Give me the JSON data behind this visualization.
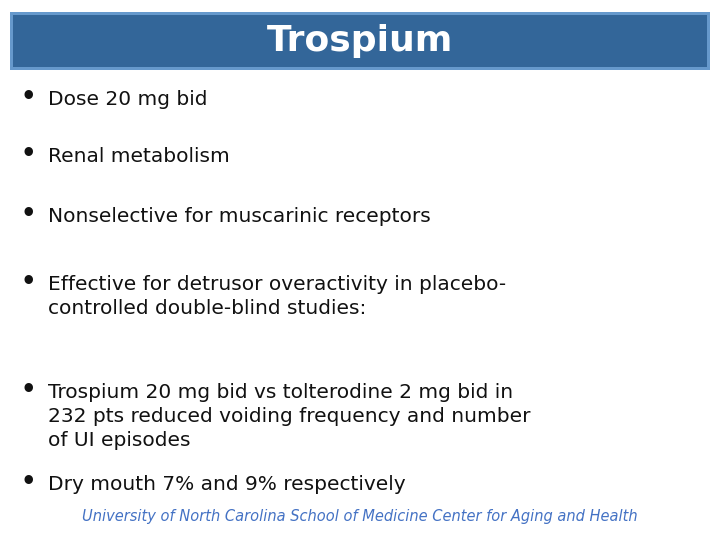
{
  "title": "Trospium",
  "title_bg_color": "#336699",
  "title_border_color": "#6699CC",
  "title_text_color": "#FFFFFF",
  "background_color": "#FFFFFF",
  "bullet_points": [
    "Dose 20 mg bid",
    "Renal metabolism",
    "Nonselective for muscarinic receptors",
    "Effective for detrusor overactivity in placebo-\ncontrolled double-blind studies:",
    "Trospium 20 mg bid vs tolterodine 2 mg bid in\n232 pts reduced voiding frequency and number\nof UI episodes",
    "Dry mouth 7% and 9% respectively"
  ],
  "bullet_color": "#111111",
  "bullet_text_color": "#111111",
  "bullet_fontsize": 14.5,
  "title_fontsize": 26,
  "footer_text": "University of North Carolina School of Medicine Center for Aging and Health",
  "footer_color": "#4472C4",
  "footer_fontsize": 10.5,
  "fig_width": 7.2,
  "fig_height": 5.4,
  "dpi": 100
}
